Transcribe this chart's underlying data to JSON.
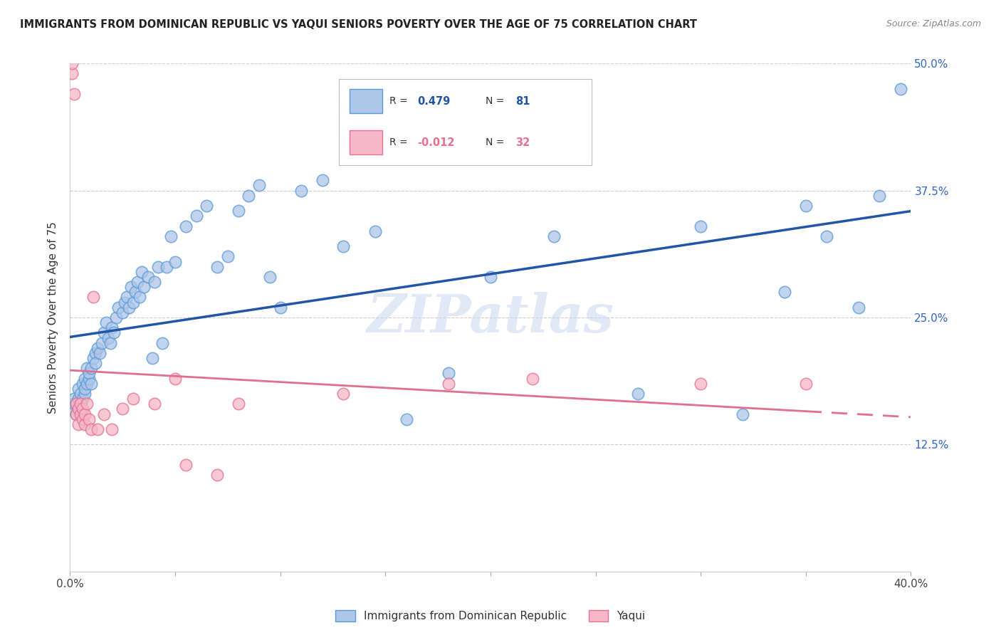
{
  "title": "IMMIGRANTS FROM DOMINICAN REPUBLIC VS YAQUI SENIORS POVERTY OVER THE AGE OF 75 CORRELATION CHART",
  "source": "Source: ZipAtlas.com",
  "ylabel": "Seniors Poverty Over the Age of 75",
  "xlim": [
    0.0,
    0.4
  ],
  "ylim": [
    0.0,
    0.5
  ],
  "ytick_positions": [
    0.0,
    0.125,
    0.25,
    0.375,
    0.5
  ],
  "ytick_labels": [
    "",
    "12.5%",
    "25.0%",
    "37.5%",
    "50.0%"
  ],
  "xtick_positions": [
    0.0,
    0.05,
    0.1,
    0.15,
    0.2,
    0.25,
    0.3,
    0.35,
    0.4
  ],
  "xtick_labels": [
    "0.0%",
    "",
    "",
    "",
    "",
    "",
    "",
    "",
    "40.0%"
  ],
  "blue_R": "0.479",
  "blue_N": "81",
  "pink_R": "-0.012",
  "pink_N": "32",
  "blue_scatter_color": "#aec6e8",
  "blue_edge_color": "#5b9bd5",
  "pink_scatter_color": "#f4b8c8",
  "pink_edge_color": "#e87090",
  "blue_line_color": "#2255aa",
  "pink_line_color": "#e07090",
  "watermark": "ZIPatlas",
  "legend_label_blue": "Immigrants from Dominican Republic",
  "legend_label_pink": "Yaqui",
  "blue_x": [
    0.001,
    0.002,
    0.002,
    0.003,
    0.003,
    0.004,
    0.004,
    0.005,
    0.005,
    0.005,
    0.006,
    0.006,
    0.007,
    0.007,
    0.007,
    0.008,
    0.008,
    0.009,
    0.009,
    0.01,
    0.01,
    0.011,
    0.012,
    0.012,
    0.013,
    0.014,
    0.015,
    0.016,
    0.017,
    0.018,
    0.019,
    0.02,
    0.021,
    0.022,
    0.023,
    0.025,
    0.026,
    0.027,
    0.028,
    0.029,
    0.03,
    0.031,
    0.032,
    0.033,
    0.034,
    0.035,
    0.037,
    0.039,
    0.04,
    0.042,
    0.044,
    0.046,
    0.048,
    0.05,
    0.055,
    0.06,
    0.065,
    0.07,
    0.075,
    0.08,
    0.085,
    0.09,
    0.095,
    0.1,
    0.11,
    0.12,
    0.13,
    0.145,
    0.16,
    0.18,
    0.2,
    0.23,
    0.27,
    0.3,
    0.32,
    0.34,
    0.35,
    0.36,
    0.375,
    0.385,
    0.395
  ],
  "blue_y": [
    0.16,
    0.165,
    0.17,
    0.155,
    0.165,
    0.17,
    0.18,
    0.16,
    0.165,
    0.175,
    0.17,
    0.185,
    0.175,
    0.18,
    0.19,
    0.185,
    0.2,
    0.19,
    0.195,
    0.185,
    0.2,
    0.21,
    0.215,
    0.205,
    0.22,
    0.215,
    0.225,
    0.235,
    0.245,
    0.23,
    0.225,
    0.24,
    0.235,
    0.25,
    0.26,
    0.255,
    0.265,
    0.27,
    0.26,
    0.28,
    0.265,
    0.275,
    0.285,
    0.27,
    0.295,
    0.28,
    0.29,
    0.21,
    0.285,
    0.3,
    0.225,
    0.3,
    0.33,
    0.305,
    0.34,
    0.35,
    0.36,
    0.3,
    0.31,
    0.355,
    0.37,
    0.38,
    0.29,
    0.26,
    0.375,
    0.385,
    0.32,
    0.335,
    0.15,
    0.195,
    0.29,
    0.33,
    0.175,
    0.34,
    0.155,
    0.275,
    0.36,
    0.33,
    0.26,
    0.37,
    0.475
  ],
  "pink_x": [
    0.001,
    0.001,
    0.002,
    0.003,
    0.003,
    0.004,
    0.004,
    0.005,
    0.005,
    0.006,
    0.006,
    0.007,
    0.007,
    0.008,
    0.009,
    0.01,
    0.011,
    0.013,
    0.016,
    0.02,
    0.025,
    0.03,
    0.04,
    0.05,
    0.055,
    0.07,
    0.08,
    0.13,
    0.18,
    0.22,
    0.3,
    0.35
  ],
  "pink_y": [
    0.49,
    0.5,
    0.47,
    0.155,
    0.165,
    0.145,
    0.16,
    0.155,
    0.165,
    0.15,
    0.16,
    0.145,
    0.155,
    0.165,
    0.15,
    0.14,
    0.27,
    0.14,
    0.155,
    0.14,
    0.16,
    0.17,
    0.165,
    0.19,
    0.105,
    0.095,
    0.165,
    0.175,
    0.185,
    0.19,
    0.185,
    0.185
  ]
}
